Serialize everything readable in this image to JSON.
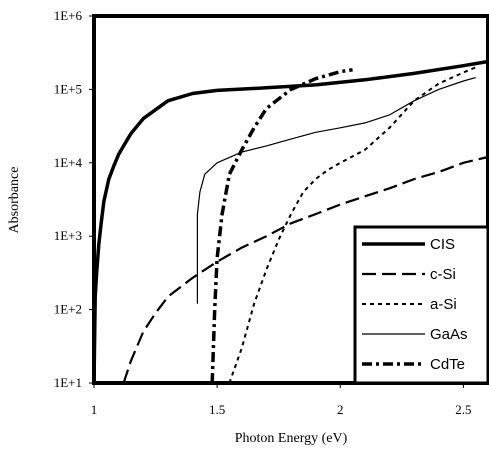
{
  "chart_data": {
    "type": "line",
    "title": "",
    "xlabel": "Photon Energy (eV)",
    "ylabel": "Absorbance",
    "xlim": [
      1,
      2.6
    ],
    "ylim": [
      10,
      1000000
    ],
    "yscale": "log",
    "grid": false,
    "legend_position": "bottom-right",
    "x_ticks": [
      {
        "value": 1,
        "label": "1"
      },
      {
        "value": 1.5,
        "label": "1.5"
      },
      {
        "value": 2,
        "label": "2"
      },
      {
        "value": 2.5,
        "label": "2.5"
      }
    ],
    "y_ticks": [
      {
        "value": 10,
        "label": "1E+1"
      },
      {
        "value": 100,
        "label": "1E+2"
      },
      {
        "value": 1000,
        "label": "1E+3"
      },
      {
        "value": 10000,
        "label": "1E+4"
      },
      {
        "value": 100000,
        "label": "1E+5"
      },
      {
        "value": 1000000,
        "label": "1E+6"
      }
    ],
    "series": [
      {
        "name": "CIS",
        "color": "#000000",
        "style": "solid-thick",
        "points": [
          [
            1.0,
            10
          ],
          [
            1.005,
            150
          ],
          [
            1.01,
            300
          ],
          [
            1.02,
            800
          ],
          [
            1.03,
            1600
          ],
          [
            1.04,
            3000
          ],
          [
            1.06,
            6000
          ],
          [
            1.08,
            9000
          ],
          [
            1.1,
            13000
          ],
          [
            1.12,
            17000
          ],
          [
            1.15,
            25000
          ],
          [
            1.2,
            40000
          ],
          [
            1.3,
            70000
          ],
          [
            1.4,
            88000
          ],
          [
            1.5,
            97000
          ],
          [
            1.7,
            105000
          ],
          [
            1.9,
            115000
          ],
          [
            2.1,
            135000
          ],
          [
            2.3,
            165000
          ],
          [
            2.5,
            210000
          ],
          [
            2.6,
            240000
          ]
        ]
      },
      {
        "name": "c-Si",
        "color": "#000000",
        "style": "long-dash",
        "points": [
          [
            1.12,
            10
          ],
          [
            1.15,
            20
          ],
          [
            1.2,
            50
          ],
          [
            1.25,
            90
          ],
          [
            1.3,
            150
          ],
          [
            1.4,
            270
          ],
          [
            1.5,
            450
          ],
          [
            1.6,
            700
          ],
          [
            1.7,
            1000
          ],
          [
            1.8,
            1500
          ],
          [
            1.9,
            2000
          ],
          [
            2.0,
            2700
          ],
          [
            2.1,
            3500
          ],
          [
            2.2,
            4500
          ],
          [
            2.3,
            6000
          ],
          [
            2.4,
            7500
          ],
          [
            2.5,
            10000
          ],
          [
            2.6,
            12000
          ]
        ]
      },
      {
        "name": "a-Si",
        "color": "#000000",
        "style": "short-dash",
        "points": [
          [
            1.55,
            10
          ],
          [
            1.6,
            30
          ],
          [
            1.65,
            120
          ],
          [
            1.7,
            350
          ],
          [
            1.75,
            900
          ],
          [
            1.8,
            2000
          ],
          [
            1.85,
            4000
          ],
          [
            1.9,
            6000
          ],
          [
            1.95,
            8000
          ],
          [
            2.0,
            10000
          ],
          [
            2.1,
            15000
          ],
          [
            2.2,
            30000
          ],
          [
            2.3,
            70000
          ],
          [
            2.4,
            120000
          ],
          [
            2.5,
            170000
          ],
          [
            2.55,
            200000
          ]
        ]
      },
      {
        "name": "GaAs",
        "color": "#000000",
        "style": "solid-thin",
        "points": [
          [
            1.42,
            120
          ],
          [
            1.42,
            2000
          ],
          [
            1.43,
            4000
          ],
          [
            1.45,
            7000
          ],
          [
            1.5,
            10000
          ],
          [
            1.6,
            14000
          ],
          [
            1.7,
            17000
          ],
          [
            1.8,
            21000
          ],
          [
            1.9,
            26000
          ],
          [
            2.0,
            30000
          ],
          [
            2.1,
            35000
          ],
          [
            2.2,
            45000
          ],
          [
            2.3,
            70000
          ],
          [
            2.4,
            100000
          ],
          [
            2.5,
            130000
          ],
          [
            2.55,
            145000
          ]
        ]
      },
      {
        "name": "CdTe",
        "color": "#000000",
        "style": "dash-dot",
        "points": [
          [
            1.48,
            10
          ],
          [
            1.49,
            100
          ],
          [
            1.5,
            500
          ],
          [
            1.52,
            2000
          ],
          [
            1.55,
            7000
          ],
          [
            1.6,
            15000
          ],
          [
            1.65,
            30000
          ],
          [
            1.7,
            55000
          ],
          [
            1.8,
            100000
          ],
          [
            1.9,
            140000
          ],
          [
            2.0,
            175000
          ],
          [
            2.05,
            185000
          ]
        ]
      }
    ]
  }
}
